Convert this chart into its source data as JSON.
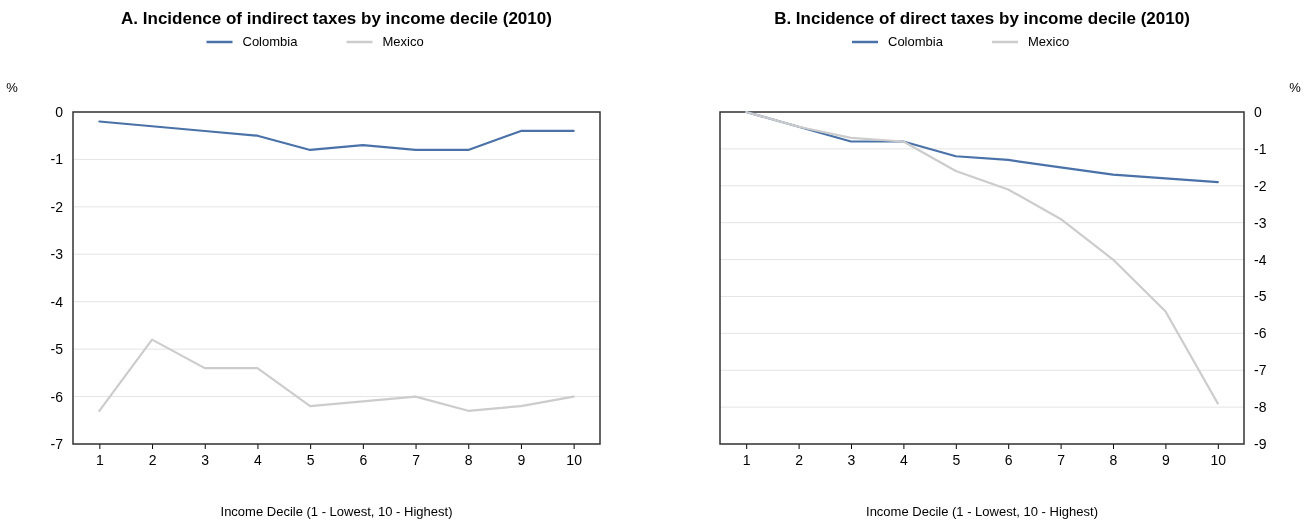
{
  "chart_data": [
    {
      "type": "line",
      "title": "A. Incidence of indirect taxes by income decile (2010)",
      "xlabel": "Income Decile (1 - Lowest, 10 - Highest)",
      "ylabel": "%",
      "categories": [
        "1",
        "2",
        "3",
        "4",
        "5",
        "6",
        "7",
        "8",
        "9",
        "10"
      ],
      "series": [
        {
          "name": "Colombia",
          "color": "#4a72a8",
          "values": [
            -0.2,
            -0.3,
            -0.4,
            -0.5,
            -0.8,
            -0.7,
            -0.8,
            -0.8,
            -0.4,
            -0.4
          ]
        },
        {
          "name": "Mexico",
          "color": "#cccccc",
          "values": [
            -6.3,
            -4.8,
            -5.4,
            -5.4,
            -6.2,
            -6.1,
            -6.0,
            -6.3,
            -6.2,
            -6.0
          ]
        }
      ],
      "ylim": [
        -7,
        0
      ],
      "yticks": [
        -7,
        -6,
        -5,
        -4,
        -3,
        -2,
        -1,
        0
      ],
      "grid": "y",
      "legend": "top"
    },
    {
      "type": "line",
      "title": "B. Incidence of direct taxes by income decile (2010)",
      "xlabel": "Income Decile (1 - Lowest, 10 - Highest)",
      "y2label": "%",
      "categories": [
        "1",
        "2",
        "3",
        "4",
        "5",
        "6",
        "7",
        "8",
        "9",
        "10"
      ],
      "series": [
        {
          "name": "Colombia",
          "color": "#4a72a8",
          "axis": "y2",
          "values": [
            0,
            -0.4,
            -0.8,
            -0.8,
            -1.2,
            -1.3,
            -1.5,
            -1.7,
            -1.8,
            -1.9
          ]
        },
        {
          "name": "Mexico",
          "color": "#cccccc",
          "axis": "y2",
          "values": [
            0,
            -0.4,
            -0.7,
            -0.8,
            -1.6,
            -2.1,
            -2.9,
            -4.0,
            -5.4,
            -7.9
          ]
        }
      ],
      "y2lim": [
        -9,
        0
      ],
      "y2ticks": [
        -9,
        -8,
        -7,
        -6,
        -5,
        -4,
        -3,
        -2,
        -1,
        0
      ],
      "grid": "y",
      "legend": "top"
    }
  ]
}
